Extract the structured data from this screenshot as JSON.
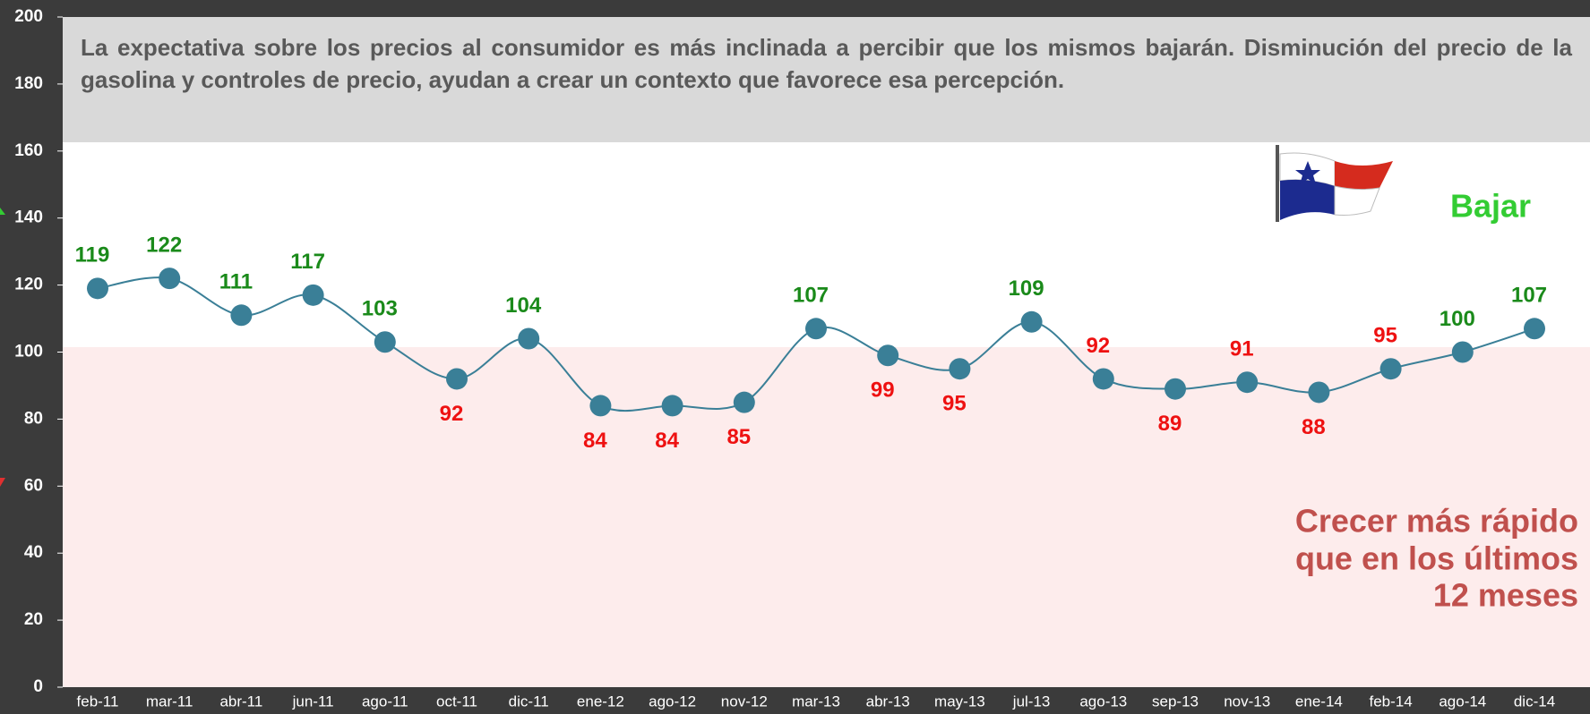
{
  "chart_data": {
    "type": "line",
    "note": "La expectativa sobre los precios al consumidor es más inclinada a percibir que los mismos bajarán. Disminución del precio de la gasolina y controles de precio, ayudan a crear un contexto que favorece esa percepción.",
    "annotation_top": "Bajar",
    "annotation_bottom": [
      "Crecer más rápido",
      "que en los últimos",
      "12 meses"
    ],
    "categories": [
      "feb-11",
      "mar-11",
      "abr-11",
      "jun-11",
      "ago-11",
      "oct-11",
      "dic-11",
      "ene-12",
      "ago-12",
      "nov-12",
      "mar-13",
      "abr-13",
      "may-13",
      "jul-13",
      "ago-13",
      "sep-13",
      "nov-13",
      "ene-14",
      "feb-14",
      "ago-14",
      "dic-14"
    ],
    "series": [
      {
        "color": "#3a7f97",
        "values": [
          119,
          122,
          111,
          117,
          103,
          92,
          104,
          84,
          84,
          85,
          107,
          99,
          95,
          109,
          92,
          89,
          91,
          88,
          95,
          100,
          107
        ],
        "label_colors": [
          "#1a8a1a",
          "#1a8a1a",
          "#1a8a1a",
          "#1a8a1a",
          "#1a8a1a",
          "#ee1111",
          "#1a8a1a",
          "#ee1111",
          "#ee1111",
          "#ee1111",
          "#1a8a1a",
          "#ee1111",
          "#ee1111",
          "#1a8a1a",
          "#ee1111",
          "#ee1111",
          "#ee1111",
          "#ee1111",
          "#ee1111",
          "#1a8a1a",
          "#1a8a1a"
        ],
        "label_position": [
          "above",
          "above",
          "above",
          "above",
          "above",
          "below",
          "above",
          "below",
          "below",
          "below",
          "above",
          "below",
          "below",
          "above",
          "above",
          "below",
          "above",
          "below",
          "above",
          "above",
          "above"
        ]
      }
    ],
    "ylim": [
      0,
      200
    ],
    "yticks": [
      0,
      20,
      40,
      60,
      80,
      100,
      120,
      140,
      160,
      180,
      200
    ]
  }
}
